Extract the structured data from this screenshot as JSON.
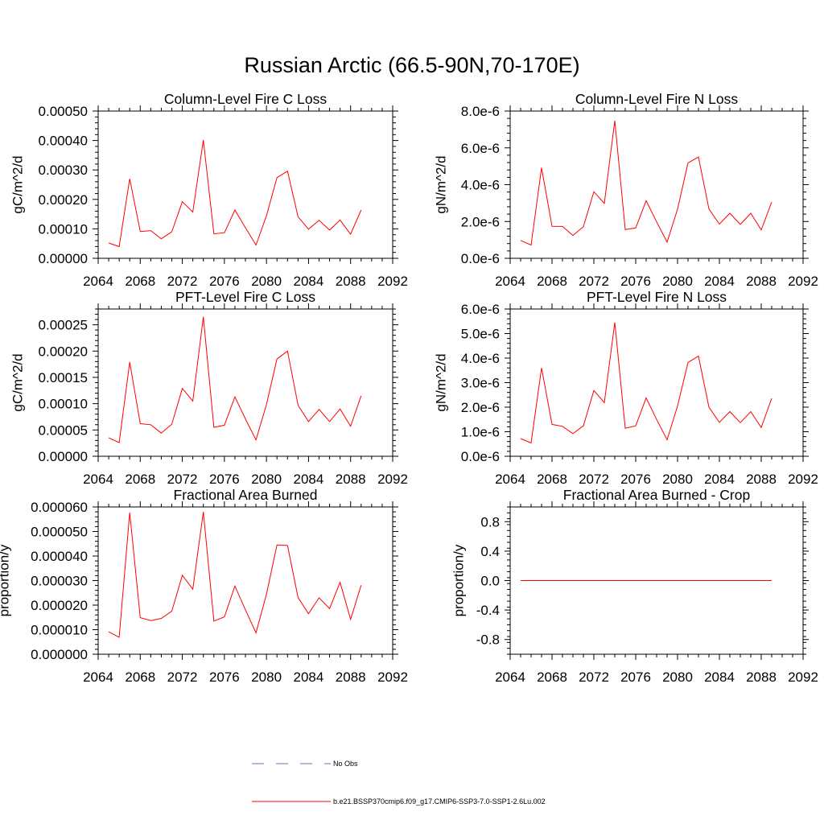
{
  "title": "Russian Arctic (66.5-90N,70-170E)",
  "chart_data": [
    {
      "type": "line",
      "title": "Column-Level Fire C Loss",
      "ylabel": "gC/m^2/d",
      "xlim": [
        2064,
        2092
      ],
      "ylim": [
        0,
        0.0005
      ],
      "xticks": [
        2064,
        2068,
        2072,
        2076,
        2080,
        2084,
        2088,
        2092
      ],
      "xtick_labels": [
        "2064",
        "2068",
        "2072",
        "2076",
        "2080",
        "2084",
        "2088",
        "2092"
      ],
      "yticks": [
        0,
        0.0001,
        0.0002,
        0.0003,
        0.0004,
        0.0005
      ],
      "ytick_labels": [
        "0.00000",
        "0.00010",
        "0.00020",
        "0.00030",
        "0.00040",
        "0.00050"
      ],
      "series": [
        {
          "name": "b.e21.BSSP370cmip6.f09_g17.CMIP6-SSP3-7.0-SSP1-2.6Lu.002",
          "color": "#ff0000",
          "x": [
            2065,
            2066,
            2067,
            2068,
            2069,
            2070,
            2071,
            2072,
            2073,
            2074,
            2075,
            2076,
            2077,
            2078,
            2079,
            2080,
            2081,
            2082,
            2083,
            2084,
            2085,
            2086,
            2087,
            2088,
            2089
          ],
          "values": [
            5.2e-05,
            4e-05,
            0.00027,
            9.1e-05,
            9.4e-05,
            6.6e-05,
            9e-05,
            0.000192,
            0.000157,
            0.000402,
            8.3e-05,
            8.7e-05,
            0.000164,
            0.000104,
            4.5e-05,
            0.000144,
            0.000274,
            0.000296,
            0.000141,
            9.9e-05,
            0.000129,
            9.6e-05,
            0.00013,
            8.2e-05,
            0.000164
          ]
        }
      ]
    },
    {
      "type": "line",
      "title": "Column-Level Fire N Loss",
      "ylabel": "gN/m^2/d",
      "xlim": [
        2064,
        2092
      ],
      "ylim": [
        0,
        8e-06
      ],
      "xticks": [
        2064,
        2068,
        2072,
        2076,
        2080,
        2084,
        2088,
        2092
      ],
      "xtick_labels": [
        "2064",
        "2068",
        "2072",
        "2076",
        "2080",
        "2084",
        "2088",
        "2092"
      ],
      "yticks": [
        0,
        2e-06,
        4e-06,
        6e-06,
        8e-06
      ],
      "ytick_labels": [
        "0.0e-6",
        "2.0e-6",
        "4.0e-6",
        "6.0e-6",
        "8.0e-6"
      ],
      "series": [
        {
          "name": "b.e21.BSSP370cmip6.f09_g17.CMIP6-SSP3-7.0-SSP1-2.6Lu.002",
          "color": "#ff0000",
          "x": [
            2065,
            2066,
            2067,
            2068,
            2069,
            2070,
            2071,
            2072,
            2073,
            2074,
            2075,
            2076,
            2077,
            2078,
            2079,
            2080,
            2081,
            2082,
            2083,
            2084,
            2085,
            2086,
            2087,
            2088,
            2089
          ],
          "values": [
            9.7e-07,
            7.2e-07,
            4.92e-06,
            1.74e-06,
            1.73e-06,
            1.24e-06,
            1.72e-06,
            3.62e-06,
            2.98e-06,
            7.48e-06,
            1.56e-06,
            1.65e-06,
            3.13e-06,
            1.98e-06,
            8.8e-07,
            2.67e-06,
            5.18e-06,
            5.5e-06,
            2.68e-06,
            1.86e-06,
            2.45e-06,
            1.84e-06,
            2.45e-06,
            1.54e-06,
            3.06e-06
          ]
        }
      ]
    },
    {
      "type": "line",
      "title": "PFT-Level Fire C Loss",
      "ylabel": "gC/m^2/d",
      "xlim": [
        2064,
        2092
      ],
      "ylim": [
        0,
        0.00028
      ],
      "xticks": [
        2064,
        2068,
        2072,
        2076,
        2080,
        2084,
        2088,
        2092
      ],
      "xtick_labels": [
        "2064",
        "2068",
        "2072",
        "2076",
        "2080",
        "2084",
        "2088",
        "2092"
      ],
      "yticks": [
        0,
        5e-05,
        0.0001,
        0.00015,
        0.0002,
        0.00025
      ],
      "ytick_labels": [
        "0.00000",
        "0.00005",
        "0.00010",
        "0.00015",
        "0.00020",
        "0.00025"
      ],
      "series": [
        {
          "name": "b.e21.BSSP370cmip6.f09_g17.CMIP6-SSP3-7.0-SSP1-2.6Lu.002",
          "color": "#ff0000",
          "x": [
            2065,
            2066,
            2067,
            2068,
            2069,
            2070,
            2071,
            2072,
            2073,
            2074,
            2075,
            2076,
            2077,
            2078,
            2079,
            2080,
            2081,
            2082,
            2083,
            2084,
            2085,
            2086,
            2087,
            2088,
            2089
          ],
          "values": [
            3.5e-05,
            2.6e-05,
            0.000179,
            6.2e-05,
            6e-05,
            4.4e-05,
            6.1e-05,
            0.000129,
            0.000105,
            0.000265,
            5.5e-05,
            5.9e-05,
            0.000113,
            7.1e-05,
            3.1e-05,
            9.8e-05,
            0.000185,
            0.0002,
            9.7e-05,
            6.6e-05,
            8.9e-05,
            6.6e-05,
            9e-05,
            5.7e-05,
            0.000115
          ]
        }
      ]
    },
    {
      "type": "line",
      "title": "PFT-Level Fire N Loss",
      "ylabel": "gN/m^2/d",
      "xlim": [
        2064,
        2092
      ],
      "ylim": [
        0,
        6e-06
      ],
      "xticks": [
        2064,
        2068,
        2072,
        2076,
        2080,
        2084,
        2088,
        2092
      ],
      "xtick_labels": [
        "2064",
        "2068",
        "2072",
        "2076",
        "2080",
        "2084",
        "2088",
        "2092"
      ],
      "yticks": [
        0,
        1e-06,
        2e-06,
        3e-06,
        4e-06,
        5e-06,
        6e-06
      ],
      "ytick_labels": [
        "0.0e-6",
        "1.0e-6",
        "2.0e-6",
        "3.0e-6",
        "4.0e-6",
        "5.0e-6",
        "6.0e-6"
      ],
      "series": [
        {
          "name": "b.e21.BSSP370cmip6.f09_g17.CMIP6-SSP3-7.0-SSP1-2.6Lu.002",
          "color": "#ff0000",
          "x": [
            2065,
            2066,
            2067,
            2068,
            2069,
            2070,
            2071,
            2072,
            2073,
            2074,
            2075,
            2076,
            2077,
            2078,
            2079,
            2080,
            2081,
            2082,
            2083,
            2084,
            2085,
            2086,
            2087,
            2088,
            2089
          ],
          "values": [
            7.2e-07,
            5.4e-07,
            3.6e-06,
            1.3e-06,
            1.22e-06,
            9.2e-07,
            1.24e-06,
            2.68e-06,
            2.18e-06,
            5.45e-06,
            1.14e-06,
            1.24e-06,
            2.38e-06,
            1.5e-06,
            6.7e-07,
            2.05e-06,
            3.82e-06,
            4.08e-06,
            2e-06,
            1.38e-06,
            1.82e-06,
            1.37e-06,
            1.82e-06,
            1.17e-06,
            2.36e-06
          ]
        }
      ]
    },
    {
      "type": "line",
      "title": "Fractional Area Burned",
      "ylabel": "proportion/y",
      "xlim": [
        2064,
        2092
      ],
      "ylim": [
        0,
        6e-05
      ],
      "xticks": [
        2064,
        2068,
        2072,
        2076,
        2080,
        2084,
        2088,
        2092
      ],
      "xtick_labels": [
        "2064",
        "2068",
        "2072",
        "2076",
        "2080",
        "2084",
        "2088",
        "2092"
      ],
      "yticks": [
        0,
        1e-05,
        2e-05,
        3e-05,
        4e-05,
        5e-05,
        6e-05
      ],
      "ytick_labels": [
        "0.000000",
        "0.000010",
        "0.000020",
        "0.000030",
        "0.000040",
        "0.000050",
        "0.000060"
      ],
      "series": [
        {
          "name": "b.e21.BSSP370cmip6.f09_g17.CMIP6-SSP3-7.0-SSP1-2.6Lu.002",
          "color": "#ff0000",
          "x": [
            2065,
            2066,
            2067,
            2068,
            2069,
            2070,
            2071,
            2072,
            2073,
            2074,
            2075,
            2076,
            2077,
            2078,
            2079,
            2080,
            2081,
            2082,
            2083,
            2084,
            2085,
            2086,
            2087,
            2088,
            2089
          ],
          "values": [
            9.1e-06,
            6.9e-06,
            5.77e-05,
            1.49e-05,
            1.37e-05,
            1.46e-05,
            1.75e-05,
            3.22e-05,
            2.65e-05,
            5.8e-05,
            1.35e-05,
            1.52e-05,
            2.78e-05,
            1.81e-05,
            8.7e-06,
            2.44e-05,
            4.45e-05,
            4.43e-05,
            2.31e-05,
            1.65e-05,
            2.3e-05,
            1.86e-05,
            2.93e-05,
            1.42e-05,
            2.81e-05
          ]
        }
      ]
    },
    {
      "type": "line",
      "title": "Fractional Area Burned - Crop",
      "ylabel": "proportion/y",
      "xlim": [
        2064,
        2092
      ],
      "ylim": [
        -1.0,
        1.0
      ],
      "xticks": [
        2064,
        2068,
        2072,
        2076,
        2080,
        2084,
        2088,
        2092
      ],
      "xtick_labels": [
        "2064",
        "2068",
        "2072",
        "2076",
        "2080",
        "2084",
        "2088",
        "2092"
      ],
      "yticks": [
        -0.8,
        -0.4,
        0.0,
        0.4,
        0.8
      ],
      "ytick_labels": [
        "-0.8",
        "-0.4",
        "0.0",
        "0.4",
        "0.8"
      ],
      "series": [
        {
          "name": "b.e21.BSSP370cmip6.f09_g17.CMIP6-SSP3-7.0-SSP1-2.6Lu.002",
          "color": "#ff0000",
          "x": [
            2065,
            2066,
            2067,
            2068,
            2069,
            2070,
            2071,
            2072,
            2073,
            2074,
            2075,
            2076,
            2077,
            2078,
            2079,
            2080,
            2081,
            2082,
            2083,
            2084,
            2085,
            2086,
            2087,
            2088,
            2089
          ],
          "values": [
            0,
            0,
            0,
            0,
            0,
            0,
            0,
            0,
            0,
            0,
            0,
            0,
            0,
            0,
            0,
            0,
            0,
            0,
            0,
            0,
            0,
            0,
            0,
            0,
            0
          ]
        }
      ]
    }
  ],
  "legend": [
    {
      "label": "No Obs",
      "color": "#6b6bbd",
      "style": "dashed"
    },
    {
      "label": "b.e21.BSSP370cmip6.f09_g17.CMIP6-SSP3-7.0-SSP1-2.6Lu.002",
      "color": "#ff0000",
      "style": "solid"
    }
  ]
}
